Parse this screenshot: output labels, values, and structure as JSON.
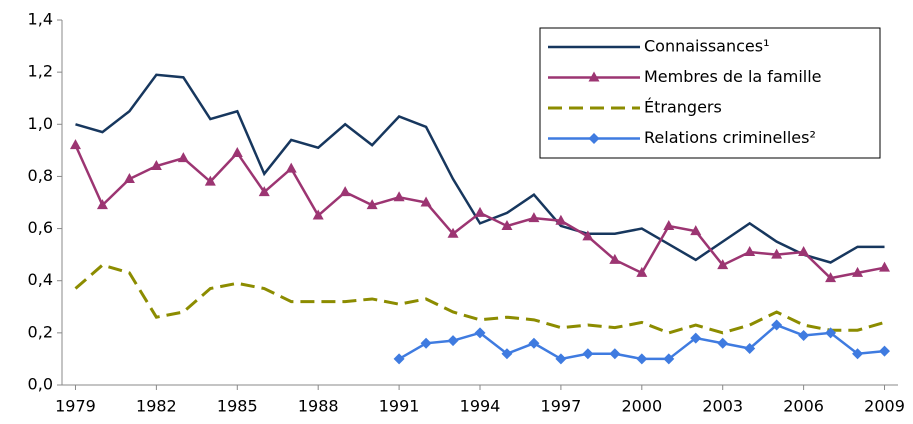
{
  "chart_data": {
    "type": "line",
    "x": [
      1979,
      1980,
      1981,
      1982,
      1983,
      1984,
      1985,
      1986,
      1987,
      1988,
      1989,
      1990,
      1991,
      1992,
      1993,
      1994,
      1995,
      1996,
      1997,
      1998,
      1999,
      2000,
      2001,
      2002,
      2003,
      2004,
      2005,
      2006,
      2007,
      2008,
      2009
    ],
    "series": [
      {
        "name": "Connaissances¹",
        "color": "#17375e",
        "marker": "none",
        "dashed": false,
        "values": [
          1.0,
          0.97,
          1.05,
          1.19,
          1.18,
          1.02,
          1.05,
          0.81,
          0.94,
          0.91,
          1.0,
          0.92,
          1.03,
          0.99,
          0.79,
          0.62,
          0.66,
          0.73,
          0.61,
          0.58,
          0.58,
          0.6,
          0.54,
          0.48,
          0.55,
          0.62,
          0.55,
          0.5,
          0.47,
          0.53,
          0.53
        ]
      },
      {
        "name": "Membres de la famille",
        "color": "#9c3572",
        "marker": "triangle",
        "dashed": false,
        "values": [
          0.92,
          0.69,
          0.79,
          0.84,
          0.87,
          0.78,
          0.89,
          0.74,
          0.83,
          0.65,
          0.74,
          0.69,
          0.72,
          0.7,
          0.58,
          0.66,
          0.61,
          0.64,
          0.63,
          0.57,
          0.48,
          0.43,
          0.61,
          0.59,
          0.46,
          0.51,
          0.5,
          0.51,
          0.41,
          0.43,
          0.45
        ]
      },
      {
        "name": "Étrangers",
        "color": "#8c8c00",
        "marker": "none",
        "dashed": true,
        "values": [
          0.37,
          0.46,
          0.43,
          0.26,
          0.28,
          0.37,
          0.39,
          0.37,
          0.32,
          0.32,
          0.32,
          0.33,
          0.31,
          0.33,
          0.28,
          0.25,
          0.26,
          0.25,
          0.22,
          0.23,
          0.22,
          0.24,
          0.2,
          0.23,
          0.2,
          0.23,
          0.28,
          0.23,
          0.21,
          0.21,
          0.24
        ]
      },
      {
        "name": "Relations criminelles²",
        "color": "#3f7be0",
        "marker": "diamond",
        "dashed": false,
        "values": [
          null,
          null,
          null,
          null,
          null,
          null,
          null,
          null,
          null,
          null,
          null,
          null,
          0.1,
          0.16,
          0.17,
          0.2,
          0.12,
          0.16,
          0.1,
          0.12,
          0.12,
          0.1,
          0.1,
          0.18,
          0.16,
          0.14,
          0.23,
          0.19,
          0.2,
          0.12,
          0.13
        ]
      }
    ],
    "xlim": [
      1978.5,
      2009.5
    ],
    "xticks": [
      1979,
      1982,
      1985,
      1988,
      1991,
      1994,
      1997,
      2000,
      2003,
      2006,
      2009
    ],
    "ylim": [
      0,
      1.4
    ],
    "yticks": [
      {
        "value": 0,
        "label": "0,0"
      },
      {
        "value": 0.2,
        "label": "0,2"
      },
      {
        "value": 0.4,
        "label": "0,4"
      },
      {
        "value": 0.6,
        "label": "0,6"
      },
      {
        "value": 0.8,
        "label": "0,8"
      },
      {
        "value": 1.0,
        "label": "1,0"
      },
      {
        "value": 1.2,
        "label": "1,2"
      },
      {
        "value": 1.4,
        "label": "1,4"
      }
    ],
    "grid": false,
    "legend": "top-right"
  }
}
